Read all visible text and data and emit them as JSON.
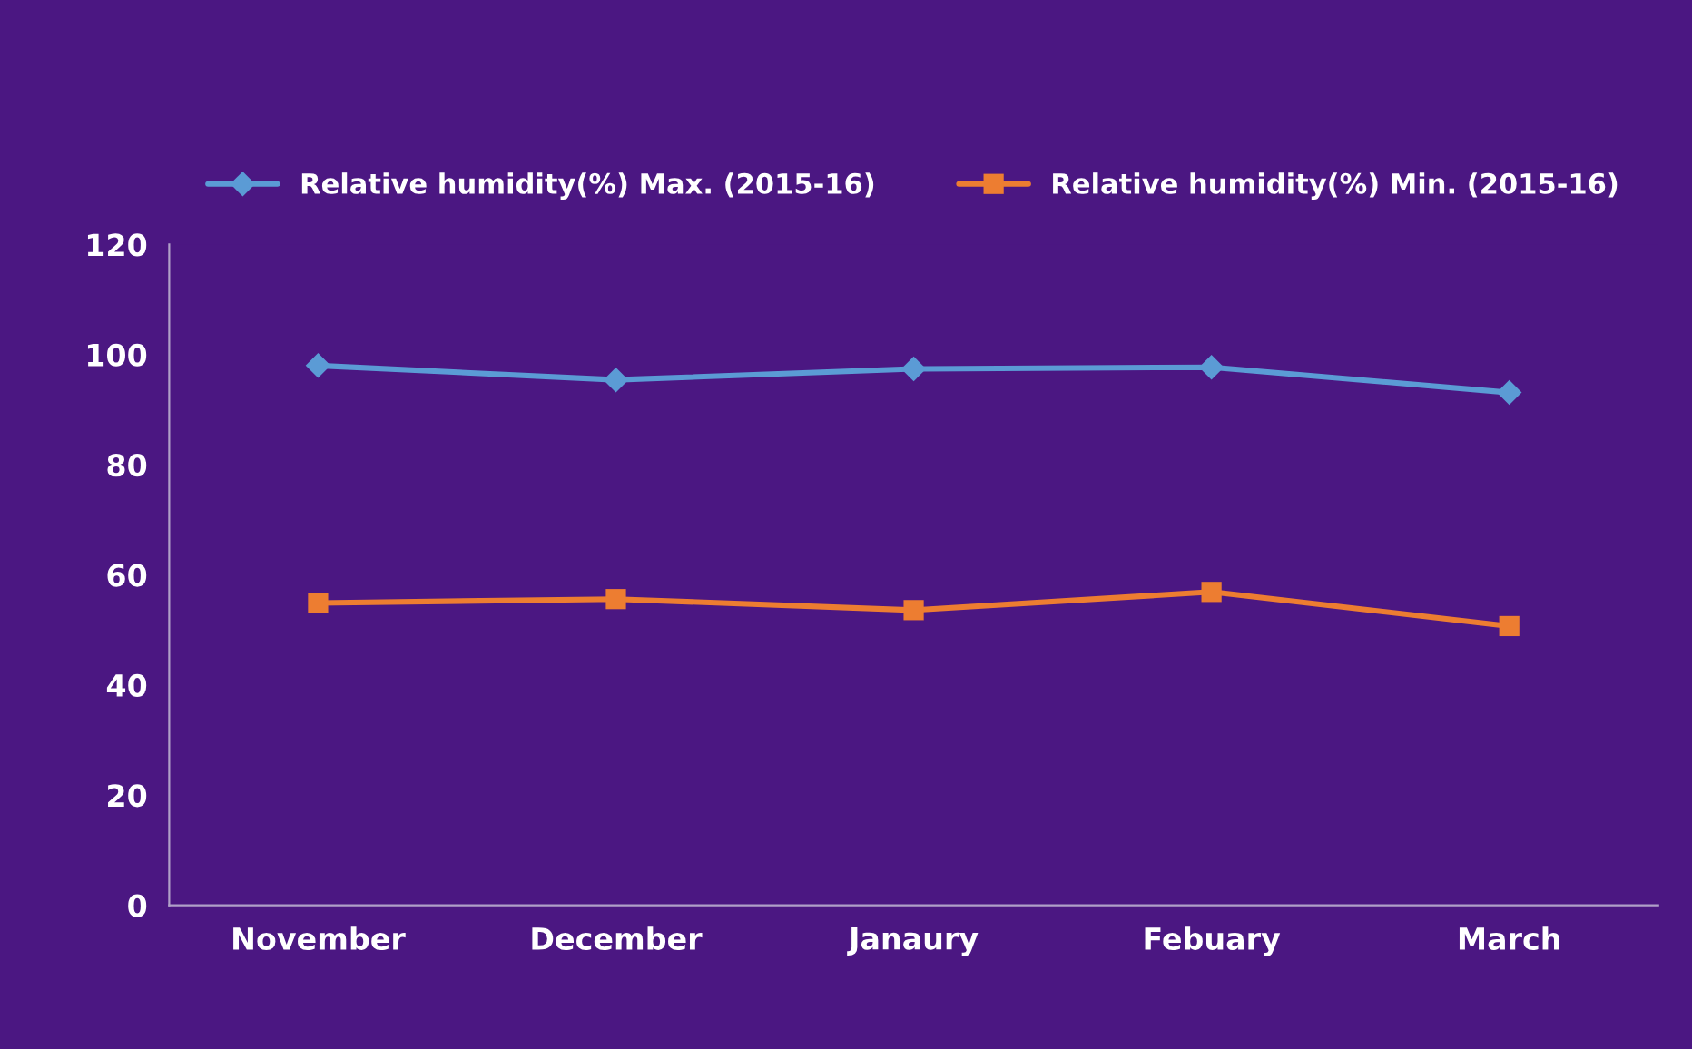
{
  "chart_data": {
    "type": "line",
    "categories": [
      "November",
      "December",
      "Janaury",
      "Febuary",
      "March"
    ],
    "series": [
      {
        "name": "Relative humidity(%) Max. (2015-16)",
        "color": "#5b9bd5",
        "marker": "diamond",
        "values": [
          98.0,
          95.4,
          97.4,
          97.7,
          93.1
        ]
      },
      {
        "name": "Relative humidity(%) Min. (2015-16)",
        "color": "#ed7d31",
        "marker": "square",
        "values": [
          54.9,
          55.6,
          53.6,
          56.9,
          50.7
        ]
      }
    ],
    "ylim": [
      0,
      120
    ],
    "yticks": [
      0,
      20,
      40,
      60,
      80,
      100,
      120
    ],
    "grid": false,
    "legend": "top"
  }
}
